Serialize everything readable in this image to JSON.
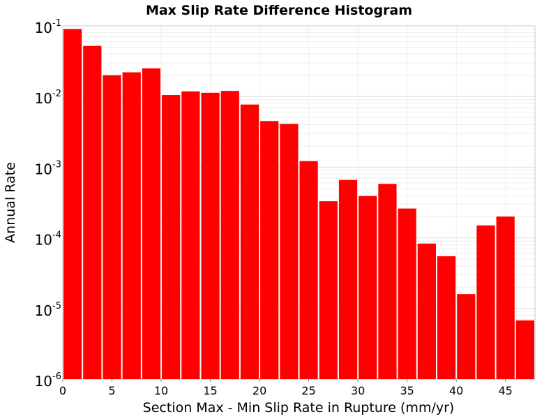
{
  "chart_data": {
    "type": "bar",
    "title": "Max Slip Rate Difference Histogram",
    "xlabel": "Section Max - Min Slip Rate in Rupture (mm/yr)",
    "ylabel": "Annual Rate",
    "y_scale": "log",
    "ylim": [
      1e-06,
      0.1
    ],
    "xlim": [
      0,
      48
    ],
    "bin_width": 2,
    "x_ticks": [
      0,
      5,
      10,
      15,
      20,
      25,
      30,
      35,
      40,
      45
    ],
    "y_ticks": [
      {
        "base": "10",
        "exp": "-6",
        "value": 1e-06
      },
      {
        "base": "10",
        "exp": "-5",
        "value": 1e-05
      },
      {
        "base": "10",
        "exp": "-4",
        "value": 0.0001
      },
      {
        "base": "10",
        "exp": "-3",
        "value": 0.001
      },
      {
        "base": "10",
        "exp": "-2",
        "value": 0.01
      },
      {
        "base": "10",
        "exp": "-1",
        "value": 0.1
      }
    ],
    "grid": true,
    "bar_color": "#ff0000",
    "bins": [
      {
        "x0": 0,
        "x1": 2,
        "value": 0.09
      },
      {
        "x0": 2,
        "x1": 4,
        "value": 0.052
      },
      {
        "x0": 4,
        "x1": 6,
        "value": 0.02
      },
      {
        "x0": 6,
        "x1": 8,
        "value": 0.022
      },
      {
        "x0": 8,
        "x1": 10,
        "value": 0.025
      },
      {
        "x0": 10,
        "x1": 12,
        "value": 0.0105
      },
      {
        "x0": 12,
        "x1": 14,
        "value": 0.0118
      },
      {
        "x0": 14,
        "x1": 16,
        "value": 0.0113
      },
      {
        "x0": 16,
        "x1": 18,
        "value": 0.012
      },
      {
        "x0": 18,
        "x1": 20,
        "value": 0.0077
      },
      {
        "x0": 20,
        "x1": 22,
        "value": 0.0045
      },
      {
        "x0": 22,
        "x1": 24,
        "value": 0.0041
      },
      {
        "x0": 24,
        "x1": 26,
        "value": 0.00122
      },
      {
        "x0": 26,
        "x1": 28,
        "value": 0.00033
      },
      {
        "x0": 28,
        "x1": 30,
        "value": 0.00066
      },
      {
        "x0": 30,
        "x1": 32,
        "value": 0.00039
      },
      {
        "x0": 32,
        "x1": 34,
        "value": 0.00058
      },
      {
        "x0": 34,
        "x1": 36,
        "value": 0.00026
      },
      {
        "x0": 36,
        "x1": 38,
        "value": 8.3e-05
      },
      {
        "x0": 38,
        "x1": 40,
        "value": 5.5e-05
      },
      {
        "x0": 40,
        "x1": 42,
        "value": 1.6e-05
      },
      {
        "x0": 42,
        "x1": 44,
        "value": 0.00015
      },
      {
        "x0": 44,
        "x1": 46,
        "value": 0.0002
      },
      {
        "x0": 46,
        "x1": 48,
        "value": 6.8e-06
      }
    ]
  }
}
